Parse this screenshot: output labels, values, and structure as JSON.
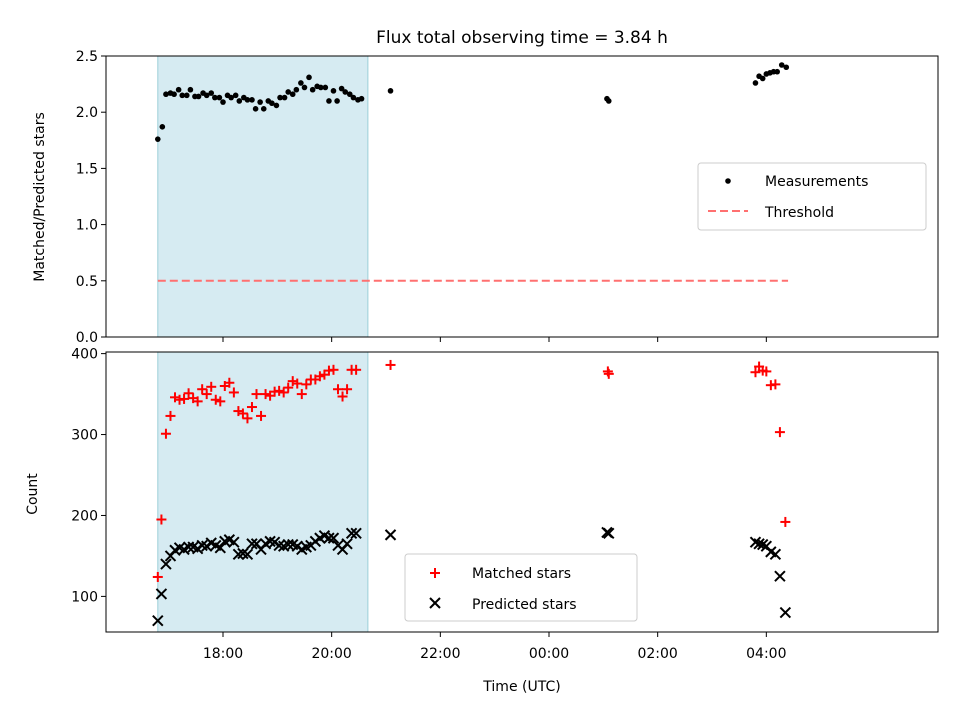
{
  "chart_data": [
    {
      "type": "scatter",
      "title": "Flux total observing time = 3.84 h",
      "xlabel": "",
      "ylabel": "Matched/Predicted stars",
      "ylim": [
        0,
        2.5
      ],
      "yticks": [
        "0.0",
        "0.5",
        "1.0",
        "1.5",
        "2.0",
        "2.5"
      ],
      "shaded_span": [
        "16:48",
        "20:40"
      ],
      "legend": {
        "placement": "center-right",
        "entries": [
          "Measurements",
          "Threshold"
        ]
      },
      "threshold": {
        "name": "Threshold",
        "value": 0.5,
        "x_start": "16:48",
        "x_end": "04:24",
        "color": "#ff7070"
      },
      "series": [
        {
          "name": "Measurements",
          "marker": "dot",
          "color": "#000000",
          "points": [
            [
              "16:48",
              1.76
            ],
            [
              "16:53",
              1.87
            ],
            [
              "16:57",
              2.16
            ],
            [
              "17:02",
              2.17
            ],
            [
              "17:06",
              2.16
            ],
            [
              "17:11",
              2.2
            ],
            [
              "17:15",
              2.15
            ],
            [
              "17:20",
              2.15
            ],
            [
              "17:24",
              2.2
            ],
            [
              "17:29",
              2.14
            ],
            [
              "17:33",
              2.14
            ],
            [
              "17:38",
              2.17
            ],
            [
              "17:42",
              2.15
            ],
            [
              "17:47",
              2.17
            ],
            [
              "17:51",
              2.13
            ],
            [
              "17:56",
              2.13
            ],
            [
              "18:00",
              2.09
            ],
            [
              "18:05",
              2.15
            ],
            [
              "18:09",
              2.13
            ],
            [
              "18:14",
              2.15
            ],
            [
              "18:18",
              2.1
            ],
            [
              "18:23",
              2.13
            ],
            [
              "18:27",
              2.11
            ],
            [
              "18:32",
              2.11
            ],
            [
              "18:36",
              2.03
            ],
            [
              "18:41",
              2.09
            ],
            [
              "18:45",
              2.03
            ],
            [
              "18:50",
              2.1
            ],
            [
              "18:54",
              2.08
            ],
            [
              "18:59",
              2.06
            ],
            [
              "19:03",
              2.13
            ],
            [
              "19:08",
              2.13
            ],
            [
              "19:12",
              2.18
            ],
            [
              "19:17",
              2.16
            ],
            [
              "19:21",
              2.2
            ],
            [
              "19:26",
              2.26
            ],
            [
              "19:30",
              2.22
            ],
            [
              "19:35",
              2.31
            ],
            [
              "19:39",
              2.2
            ],
            [
              "19:44",
              2.23
            ],
            [
              "19:48",
              2.22
            ],
            [
              "19:53",
              2.22
            ],
            [
              "19:57",
              2.1
            ],
            [
              "20:02",
              2.19
            ],
            [
              "20:06",
              2.1
            ],
            [
              "20:11",
              2.21
            ],
            [
              "20:15",
              2.18
            ],
            [
              "20:20",
              2.16
            ],
            [
              "20:24",
              2.13
            ],
            [
              "20:29",
              2.11
            ],
            [
              "20:33",
              2.12
            ],
            [
              "21:05",
              2.19
            ],
            [
              "01:04",
              2.12
            ],
            [
              "01:06",
              2.1
            ],
            [
              "03:48",
              2.26
            ],
            [
              "03:52",
              2.32
            ],
            [
              "03:56",
              2.3
            ],
            [
              "04:00",
              2.34
            ],
            [
              "04:04",
              2.35
            ],
            [
              "04:08",
              2.36
            ],
            [
              "04:12",
              2.36
            ],
            [
              "04:17",
              2.42
            ],
            [
              "04:22",
              2.4
            ]
          ]
        }
      ]
    },
    {
      "type": "scatter",
      "title": "",
      "xlabel": "Time (UTC)",
      "ylabel": "Count",
      "ylim": [
        56,
        402
      ],
      "yticks": [
        "100",
        "200",
        "300",
        "400"
      ],
      "xticks": [
        "18:00",
        "20:00",
        "22:00",
        "00:00",
        "02:00",
        "04:00"
      ],
      "shaded_span": [
        "16:48",
        "20:40"
      ],
      "legend": {
        "placement": "bottom-center",
        "entries": [
          "Matched stars",
          "Predicted stars"
        ]
      },
      "series": [
        {
          "name": "Matched stars",
          "marker": "plus",
          "color": "#ff0000",
          "points": [
            [
              "16:48",
              124
            ],
            [
              "16:52",
              195
            ],
            [
              "16:57",
              301
            ],
            [
              "17:02",
              323
            ],
            [
              "17:07",
              346
            ],
            [
              "17:12",
              343
            ],
            [
              "17:17",
              344
            ],
            [
              "17:22",
              351
            ],
            [
              "17:27",
              345
            ],
            [
              "17:32",
              341
            ],
            [
              "17:37",
              356
            ],
            [
              "17:42",
              350
            ],
            [
              "17:47",
              359
            ],
            [
              "17:52",
              343
            ],
            [
              "17:57",
              341
            ],
            [
              "18:02",
              360
            ],
            [
              "18:07",
              364
            ],
            [
              "18:12",
              352
            ],
            [
              "18:17",
              329
            ],
            [
              "18:22",
              326
            ],
            [
              "18:27",
              320
            ],
            [
              "18:32",
              334
            ],
            [
              "18:37",
              350
            ],
            [
              "18:42",
              323
            ],
            [
              "18:47",
              350
            ],
            [
              "18:52",
              348
            ],
            [
              "18:57",
              353
            ],
            [
              "19:02",
              354
            ],
            [
              "19:07",
              352
            ],
            [
              "19:12",
              358
            ],
            [
              "19:17",
              366
            ],
            [
              "19:22",
              363
            ],
            [
              "19:27",
              350
            ],
            [
              "19:32",
              362
            ],
            [
              "19:37",
              368
            ],
            [
              "19:42",
              368
            ],
            [
              "19:47",
              372
            ],
            [
              "19:52",
              374
            ],
            [
              "19:57",
              379
            ],
            [
              "20:02",
              380
            ],
            [
              "20:07",
              356
            ],
            [
              "20:12",
              347
            ],
            [
              "20:17",
              356
            ],
            [
              "20:22",
              380
            ],
            [
              "20:27",
              380
            ],
            [
              "21:05",
              386
            ],
            [
              "01:05",
              378
            ],
            [
              "01:06",
              375
            ],
            [
              "03:48",
              377
            ],
            [
              "03:52",
              384
            ],
            [
              "03:56",
              379
            ],
            [
              "04:00",
              378
            ],
            [
              "04:05",
              361
            ],
            [
              "04:10",
              362
            ],
            [
              "04:15",
              303
            ],
            [
              "04:21",
              192
            ]
          ]
        },
        {
          "name": "Predicted stars",
          "marker": "x",
          "color": "#000000",
          "points": [
            [
              "16:48",
              70
            ],
            [
              "16:52",
              103
            ],
            [
              "16:57",
              140
            ],
            [
              "17:02",
              150
            ],
            [
              "17:07",
              157
            ],
            [
              "17:12",
              160
            ],
            [
              "17:17",
              158
            ],
            [
              "17:22",
              161
            ],
            [
              "17:27",
              161
            ],
            [
              "17:32",
              159
            ],
            [
              "17:37",
              163
            ],
            [
              "17:42",
              162
            ],
            [
              "17:47",
              166
            ],
            [
              "17:52",
              163
            ],
            [
              "17:57",
              160
            ],
            [
              "18:02",
              168
            ],
            [
              "18:07",
              170
            ],
            [
              "18:12",
              167
            ],
            [
              "18:17",
              152
            ],
            [
              "18:22",
              153
            ],
            [
              "18:27",
              152
            ],
            [
              "18:32",
              165
            ],
            [
              "18:37",
              165
            ],
            [
              "18:42",
              158
            ],
            [
              "18:47",
              165
            ],
            [
              "18:52",
              168
            ],
            [
              "18:57",
              167
            ],
            [
              "19:02",
              163
            ],
            [
              "19:07",
              162
            ],
            [
              "19:12",
              164
            ],
            [
              "19:17",
              164
            ],
            [
              "19:22",
              162
            ],
            [
              "19:27",
              158
            ],
            [
              "19:32",
              161
            ],
            [
              "19:37",
              163
            ],
            [
              "19:42",
              168
            ],
            [
              "19:47",
              172
            ],
            [
              "19:52",
              175
            ],
            [
              "19:57",
              172
            ],
            [
              "20:02",
              172
            ],
            [
              "20:07",
              163
            ],
            [
              "20:12",
              158
            ],
            [
              "20:17",
              165
            ],
            [
              "20:22",
              178
            ],
            [
              "20:27",
              178
            ],
            [
              "21:05",
              176
            ],
            [
              "01:04",
              179
            ],
            [
              "01:06",
              178
            ],
            [
              "03:48",
              167
            ],
            [
              "03:52",
              165
            ],
            [
              "03:56",
              164
            ],
            [
              "04:00",
              162
            ],
            [
              "04:05",
              155
            ],
            [
              "04:10",
              152
            ],
            [
              "04:15",
              125
            ],
            [
              "04:21",
              80
            ]
          ]
        }
      ]
    }
  ]
}
